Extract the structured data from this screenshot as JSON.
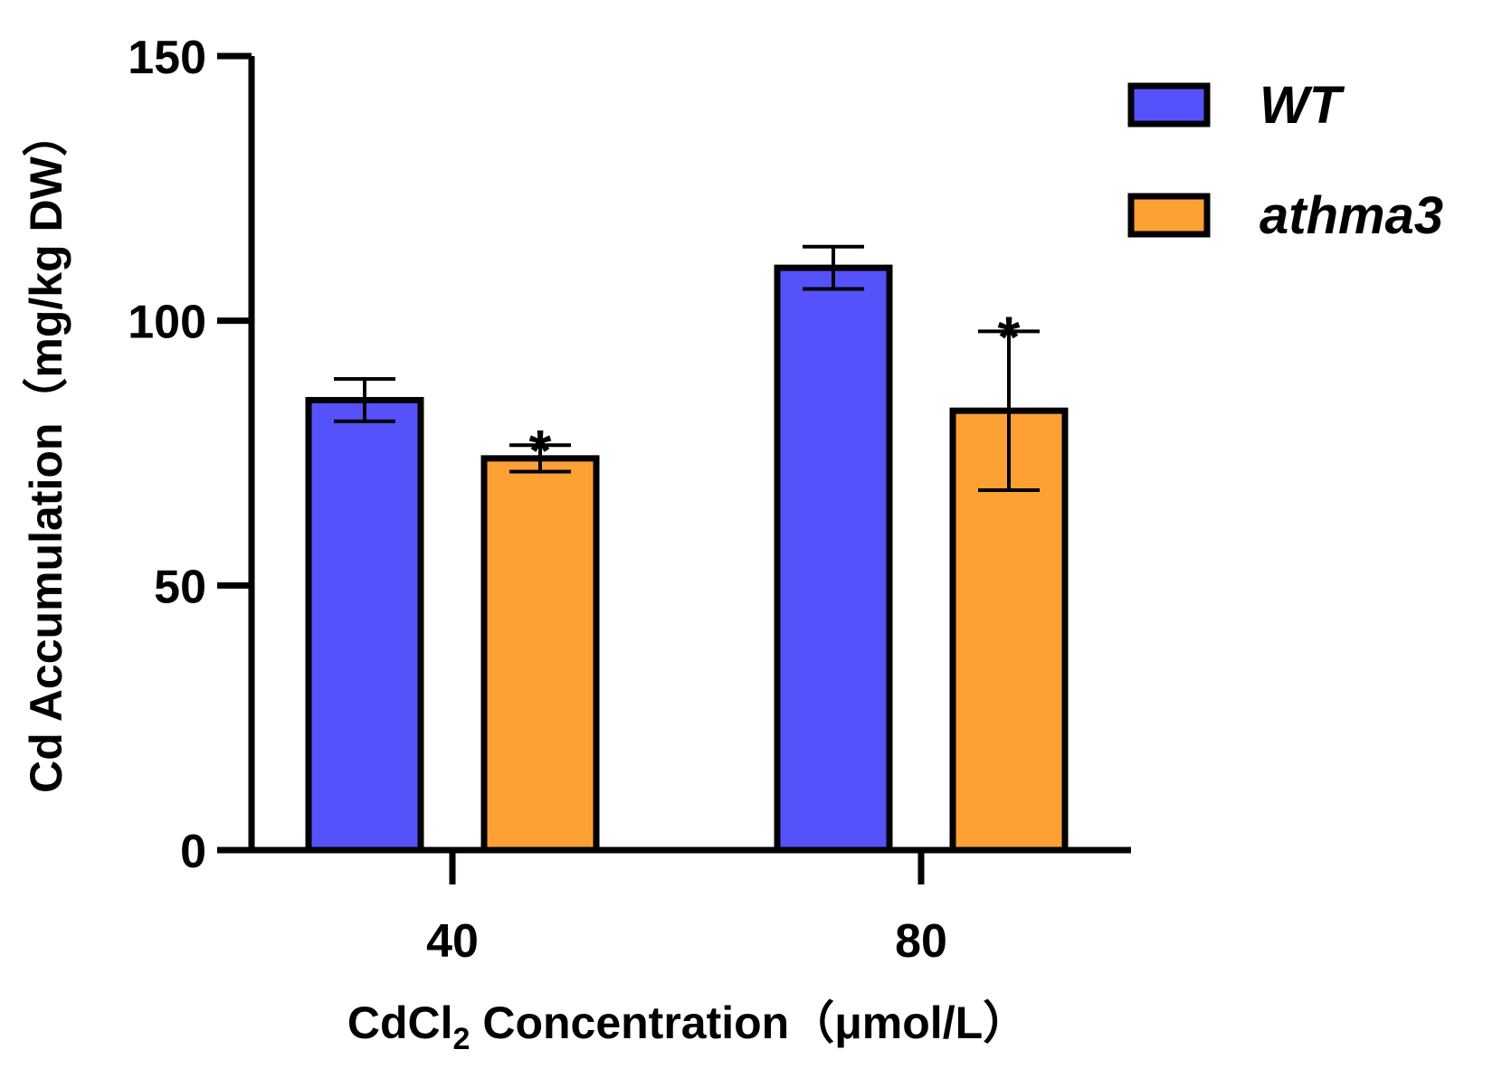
{
  "chart_data": {
    "type": "bar",
    "categories": [
      "40",
      "80"
    ],
    "series": [
      {
        "name": "WT",
        "values": [
          85,
          110
        ],
        "errors": [
          4,
          4
        ],
        "significance": [
          "",
          ""
        ],
        "color": "#5551fb"
      },
      {
        "name": "athma3",
        "values": [
          74,
          83
        ],
        "errors": [
          2.5,
          15
        ],
        "significance": [
          "*",
          "*"
        ],
        "color": "#fda135"
      }
    ],
    "ylim": [
      0,
      150
    ],
    "yticks": [
      0,
      50,
      100,
      150
    ],
    "ylabel": "Cd Accumulation（mg/kg DW）",
    "xlabel": {
      "prefix": "CdCl",
      "subscript": "2",
      "suffix": " Concentration（μmol/L）"
    },
    "legend_position": "top-right"
  }
}
